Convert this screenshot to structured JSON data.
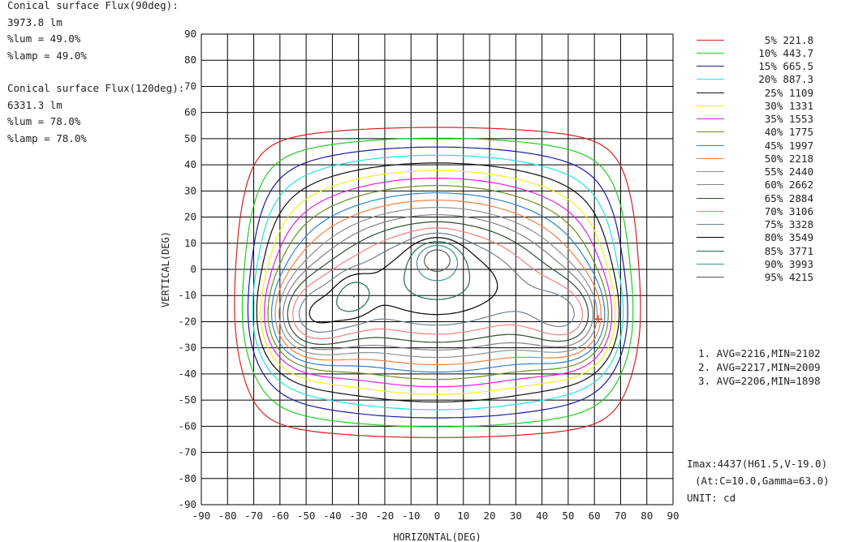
{
  "info_blocks": [
    {
      "title": "Conical surface Flux(90deg):",
      "flux": "3973.8 lm",
      "lum": "%lum = 49.0%",
      "lamp": "%lamp = 49.0%"
    },
    {
      "title": "Conical surface Flux(120deg):",
      "flux": "6331.3 lm",
      "lum": "%lum = 78.0%",
      "lamp": "%lamp = 78.0%"
    }
  ],
  "chart_data": {
    "type": "contour",
    "xlabel": "HORIZONTAL(DEG)",
    "ylabel": "VERTICAL(DEG)",
    "xlim": [
      -90,
      90
    ],
    "ylim": [
      -90,
      90
    ],
    "xticks": [
      -90,
      -80,
      -70,
      -60,
      -50,
      -40,
      -30,
      -20,
      -10,
      0,
      10,
      20,
      30,
      40,
      50,
      60,
      70,
      80,
      90
    ],
    "yticks": [
      90,
      80,
      70,
      60,
      50,
      40,
      30,
      20,
      10,
      0,
      -10,
      -20,
      -30,
      -40,
      -50,
      -60,
      -70,
      -80,
      -90
    ],
    "grid": true,
    "legend_position": "right",
    "levels": [
      {
        "label": "5%",
        "value": "221.8",
        "color": "#d42020"
      },
      {
        "label": "10%",
        "value": "443.7",
        "color": "#22cc22"
      },
      {
        "label": "15%",
        "value": "665.5",
        "color": "#1a1aa0"
      },
      {
        "label": "20%",
        "value": "887.3",
        "color": "#22e0e0"
      },
      {
        "label": "25%",
        "value": "1109",
        "color": "#111111"
      },
      {
        "label": "30%",
        "value": "1331",
        "color": "#f0f020"
      },
      {
        "label": "35%",
        "value": "1553",
        "color": "#e020e0"
      },
      {
        "label": "40%",
        "value": "1775",
        "color": "#6b8e23"
      },
      {
        "label": "45%",
        "value": "1997",
        "color": "#2f80d0"
      },
      {
        "label": "50%",
        "value": "2218",
        "color": "#f08040"
      },
      {
        "label": "55%",
        "value": "2440",
        "color": "#909090"
      },
      {
        "label": "60%",
        "value": "2662",
        "color": "#808080"
      },
      {
        "label": "65%",
        "value": "2884",
        "color": "#2f4f2f"
      },
      {
        "label": "70%",
        "value": "3106",
        "color": "#f08080"
      },
      {
        "label": "75%",
        "value": "3328",
        "color": "#708090"
      },
      {
        "label": "80%",
        "value": "3549",
        "color": "#000000"
      },
      {
        "label": "85%",
        "value": "3771",
        "color": "#1f6f4f"
      },
      {
        "label": "90%",
        "value": "3993",
        "color": "#3f8f8f"
      },
      {
        "label": "95%",
        "value": "4215",
        "color": "#555555"
      }
    ],
    "averages": [
      "1. AVG=2216,MIN=2102",
      "2. AVG=2217,MIN=2009",
      "3. AVG=2206,MIN=1898"
    ],
    "imax": {
      "line1": "Imax:4437(H61.5,V-19.0)",
      "line2": "(At:C=10.0,Gamma=63.0)",
      "unit": "UNIT: cd",
      "h": 61.5,
      "v": -19.0
    }
  }
}
